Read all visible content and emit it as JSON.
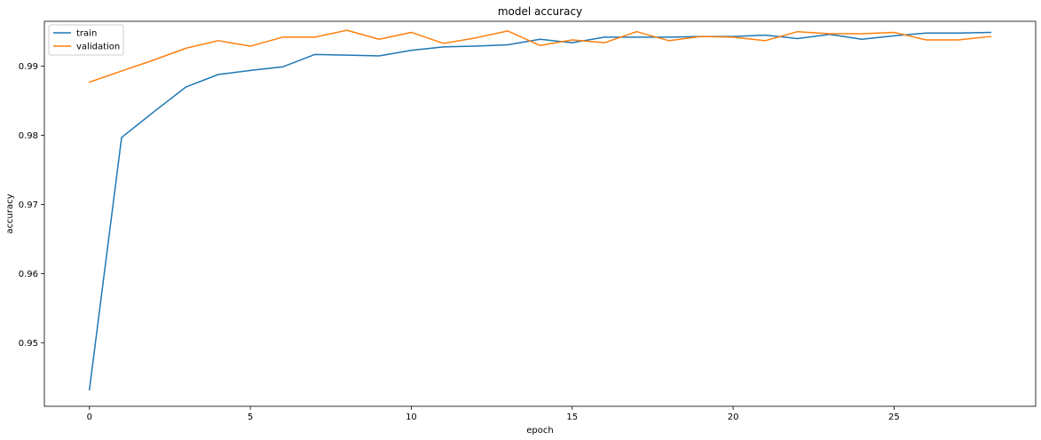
{
  "chart_data": {
    "type": "line",
    "title": "model accuracy",
    "xlabel": "epoch",
    "ylabel": "accuracy",
    "xlim": [
      -1.4,
      29.4
    ],
    "ylim": [
      0.9408,
      0.9965
    ],
    "xticks": [
      0,
      5,
      10,
      15,
      20,
      25
    ],
    "yticks": [
      0.95,
      0.96,
      0.97,
      0.98,
      0.99
    ],
    "ytick_labels": [
      "0.95",
      "0.96",
      "0.97",
      "0.98",
      "0.99"
    ],
    "grid": false,
    "legend": "upper-left",
    "x": [
      0,
      1,
      2,
      3,
      4,
      5,
      6,
      7,
      8,
      9,
      10,
      11,
      12,
      13,
      14,
      15,
      16,
      17,
      18,
      19,
      20,
      21,
      22,
      23,
      24,
      25,
      26,
      27,
      28
    ],
    "series": [
      {
        "name": "train",
        "color": "#1f77b4",
        "values": [
          0.9432,
          0.9797,
          0.9834,
          0.987,
          0.9888,
          0.9894,
          0.9899,
          0.9917,
          0.9916,
          0.9915,
          0.9923,
          0.9928,
          0.9929,
          0.9931,
          0.9939,
          0.9934,
          0.9942,
          0.9942,
          0.9942,
          0.9943,
          0.9943,
          0.9945,
          0.994,
          0.9946,
          0.9939,
          0.9944,
          0.9948,
          0.9948,
          0.9949
        ]
      },
      {
        "name": "validation",
        "color": "#ff7f0e",
        "values": [
          0.9877,
          0.9893,
          0.9909,
          0.9926,
          0.9937,
          0.9929,
          0.9942,
          0.9942,
          0.9952,
          0.9939,
          0.9949,
          0.9933,
          0.9941,
          0.9951,
          0.993,
          0.9938,
          0.9934,
          0.995,
          0.9937,
          0.9943,
          0.9942,
          0.9937,
          0.995,
          0.9947,
          0.9947,
          0.9949,
          0.9938,
          0.9938,
          0.9943
        ]
      }
    ]
  }
}
